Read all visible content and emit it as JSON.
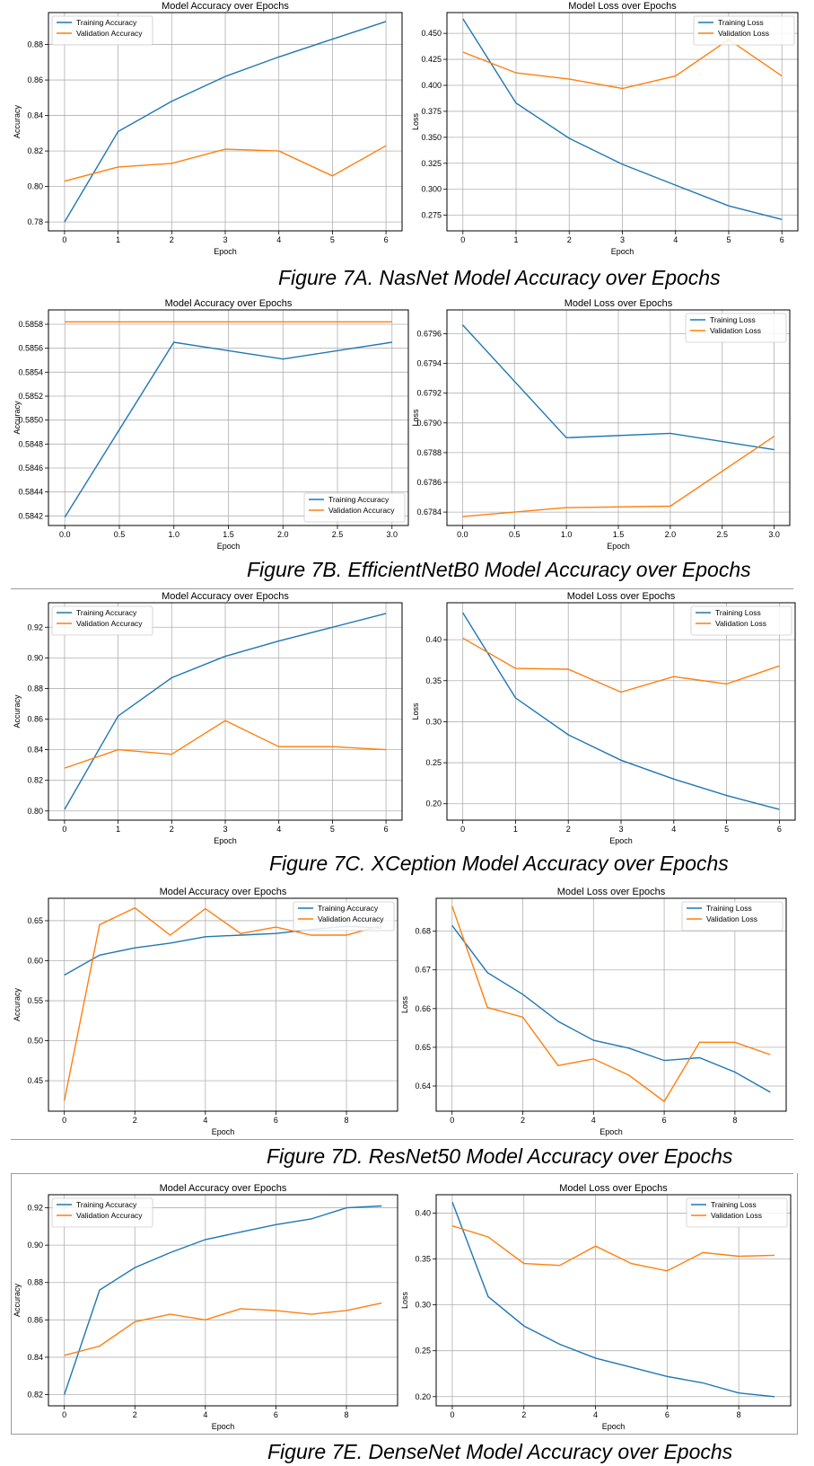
{
  "chart_data": [
    {
      "type": "line",
      "title": "Model Accuracy over Epochs",
      "xlabel": "Epoch",
      "ylabel": "Accuracy",
      "xlim": [
        -0.3,
        6.3
      ],
      "ylim": [
        0.775,
        0.898
      ],
      "xticks": [
        0,
        1,
        2,
        3,
        4,
        5,
        6
      ],
      "xtick_labels": [
        "0",
        "1",
        "2",
        "3",
        "4",
        "5",
        "6"
      ],
      "yticks": [
        0.78,
        0.8,
        0.82,
        0.84,
        0.86,
        0.88
      ],
      "ytick_labels": [
        "0.78",
        "0.80",
        "0.82",
        "0.84",
        "0.86",
        "0.88"
      ],
      "grid": true,
      "legend_position": "top-left",
      "series": [
        {
          "name": "Training Accuracy",
          "color": "#1f77b4",
          "x": [
            0,
            1,
            2,
            3,
            4,
            5,
            6
          ],
          "values": [
            0.78,
            0.831,
            0.848,
            0.862,
            0.873,
            0.883,
            0.893
          ]
        },
        {
          "name": "Validation Accuracy",
          "color": "#ff7f0e",
          "x": [
            0,
            1,
            2,
            3,
            4,
            5,
            6
          ],
          "values": [
            0.803,
            0.811,
            0.813,
            0.821,
            0.82,
            0.806,
            0.823
          ]
        }
      ]
    },
    {
      "type": "line",
      "title": "Model Loss over Epochs",
      "xlabel": "Epoch",
      "ylabel": "Loss",
      "xlim": [
        -0.3,
        6.3
      ],
      "ylim": [
        0.26,
        0.47
      ],
      "xticks": [
        0,
        1,
        2,
        3,
        4,
        5,
        6
      ],
      "xtick_labels": [
        "0",
        "1",
        "2",
        "3",
        "4",
        "5",
        "6"
      ],
      "yticks": [
        0.275,
        0.3,
        0.325,
        0.35,
        0.375,
        0.4,
        0.425,
        0.45
      ],
      "ytick_labels": [
        "0.275",
        "0.300",
        "0.325",
        "0.350",
        "0.375",
        "0.400",
        "0.425",
        "0.450"
      ],
      "grid": true,
      "legend_position": "top-right",
      "series": [
        {
          "name": "Training Loss",
          "color": "#1f77b4",
          "x": [
            0,
            1,
            2,
            3,
            4,
            5,
            6
          ],
          "values": [
            0.464,
            0.383,
            0.349,
            0.324,
            0.304,
            0.284,
            0.271
          ]
        },
        {
          "name": "Validation Loss",
          "color": "#ff7f0e",
          "x": [
            0,
            1,
            2,
            3,
            4,
            5,
            6
          ],
          "values": [
            0.432,
            0.412,
            0.406,
            0.397,
            0.409,
            0.444,
            0.409
          ]
        }
      ]
    },
    {
      "type": "line",
      "title": "Model Accuracy over Epochs",
      "xlabel": "Epoch",
      "ylabel": "Accuracy",
      "xlim": [
        -0.15,
        3.15
      ],
      "ylim": [
        0.58412,
        0.58592
      ],
      "xticks": [
        0,
        0.5,
        1,
        1.5,
        2,
        2.5,
        3
      ],
      "xtick_labels": [
        "0.0",
        "0.5",
        "1.0",
        "1.5",
        "2.0",
        "2.5",
        "3.0"
      ],
      "yticks": [
        0.5842,
        0.5844,
        0.5846,
        0.5848,
        0.585,
        0.5852,
        0.5854,
        0.5856,
        0.5858
      ],
      "ytick_labels": [
        "0.5842",
        "0.5844",
        "0.5846",
        "0.5848",
        "0.5850",
        "0.5852",
        "0.5854",
        "0.5856",
        "0.5858"
      ],
      "grid": true,
      "legend_position": "bottom-right",
      "series": [
        {
          "name": "Training Accuracy",
          "color": "#1f77b4",
          "x": [
            0,
            1,
            2,
            3
          ],
          "values": [
            0.58419,
            0.58565,
            0.58551,
            0.58565
          ]
        },
        {
          "name": "Validation Accuracy",
          "color": "#ff7f0e",
          "x": [
            0,
            1,
            2,
            3
          ],
          "values": [
            0.58582,
            0.58582,
            0.58582,
            0.58582
          ]
        }
      ]
    },
    {
      "type": "line",
      "title": "Model Loss over Epochs",
      "xlabel": "Epoch",
      "ylabel": "Loss",
      "xlim": [
        -0.15,
        3.15
      ],
      "ylim": [
        0.67831,
        0.67976
      ],
      "xticks": [
        0,
        0.5,
        1,
        1.5,
        2,
        2.5,
        3
      ],
      "xtick_labels": [
        "0.0",
        "0.5",
        "1.0",
        "1.5",
        "2.0",
        "2.5",
        "3.0"
      ],
      "yticks": [
        0.6784,
        0.6786,
        0.6788,
        0.679,
        0.6792,
        0.6794,
        0.6796
      ],
      "ytick_labels": [
        "0.6784",
        "0.6786",
        "0.6788",
        "0.6790",
        "0.6792",
        "0.6794",
        "0.6796"
      ],
      "grid": true,
      "legend_position": "top-right",
      "series": [
        {
          "name": "Training Loss",
          "color": "#1f77b4",
          "x": [
            0,
            1,
            2,
            3
          ],
          "values": [
            0.67966,
            0.6789,
            0.67893,
            0.67882
          ]
        },
        {
          "name": "Validation Loss",
          "color": "#ff7f0e",
          "x": [
            0,
            1,
            2,
            3
          ],
          "values": [
            0.67837,
            0.67843,
            0.67844,
            0.67891
          ]
        }
      ]
    },
    {
      "type": "line",
      "title": "Model Accuracy over Epochs",
      "xlabel": "Epoch",
      "ylabel": "Accuracy",
      "xlim": [
        -0.3,
        6.3
      ],
      "ylim": [
        0.794,
        0.936
      ],
      "xticks": [
        0,
        1,
        2,
        3,
        4,
        5,
        6
      ],
      "xtick_labels": [
        "0",
        "1",
        "2",
        "3",
        "4",
        "5",
        "6"
      ],
      "yticks": [
        0.8,
        0.82,
        0.84,
        0.86,
        0.88,
        0.9,
        0.92
      ],
      "ytick_labels": [
        "0.80",
        "0.82",
        "0.84",
        "0.86",
        "0.88",
        "0.90",
        "0.92"
      ],
      "grid": true,
      "legend_position": "top-left",
      "series": [
        {
          "name": "Training Accuracy",
          "color": "#1f77b4",
          "x": [
            0,
            1,
            2,
            3,
            4,
            5,
            6
          ],
          "values": [
            0.801,
            0.862,
            0.887,
            0.901,
            0.911,
            0.92,
            0.929
          ]
        },
        {
          "name": "Validation Accuracy",
          "color": "#ff7f0e",
          "x": [
            0,
            1,
            2,
            3,
            4,
            5,
            6
          ],
          "values": [
            0.828,
            0.84,
            0.837,
            0.859,
            0.842,
            0.842,
            0.84
          ]
        }
      ]
    },
    {
      "type": "line",
      "title": "Model Loss over Epochs",
      "xlabel": "Epoch",
      "ylabel": "Loss",
      "xlim": [
        -0.3,
        6.3
      ],
      "ylim": [
        0.18,
        0.445
      ],
      "xticks": [
        0,
        1,
        2,
        3,
        4,
        5,
        6
      ],
      "xtick_labels": [
        "0",
        "1",
        "2",
        "3",
        "4",
        "5",
        "6"
      ],
      "yticks": [
        0.2,
        0.25,
        0.3,
        0.35,
        0.4
      ],
      "ytick_labels": [
        "0.20",
        "0.25",
        "0.30",
        "0.35",
        "0.40"
      ],
      "grid": true,
      "legend_position": "top-right",
      "series": [
        {
          "name": "Training Loss",
          "color": "#1f77b4",
          "x": [
            0,
            1,
            2,
            3,
            4,
            5,
            6
          ],
          "values": [
            0.433,
            0.329,
            0.284,
            0.253,
            0.23,
            0.21,
            0.193
          ]
        },
        {
          "name": "Validation Loss",
          "color": "#ff7f0e",
          "x": [
            0,
            1,
            2,
            3,
            4,
            5,
            6
          ],
          "values": [
            0.402,
            0.365,
            0.364,
            0.336,
            0.355,
            0.346,
            0.368
          ]
        }
      ]
    },
    {
      "type": "line",
      "title": "Model Accuracy over Epochs",
      "xlabel": "Epoch",
      "ylabel": "Accuracy",
      "xlim": [
        -0.45,
        9.45
      ],
      "ylim": [
        0.412,
        0.678
      ],
      "xticks": [
        0,
        2,
        4,
        6,
        8
      ],
      "xtick_labels": [
        "0",
        "2",
        "4",
        "6",
        "8"
      ],
      "yticks": [
        0.45,
        0.5,
        0.55,
        0.6,
        0.65
      ],
      "ytick_labels": [
        "0.45",
        "0.50",
        "0.55",
        "0.60",
        "0.65"
      ],
      "grid": true,
      "legend_position": "top-right",
      "series": [
        {
          "name": "Training Accuracy",
          "color": "#1f77b4",
          "x": [
            0,
            1,
            2,
            3,
            4,
            5,
            6,
            7,
            8,
            9
          ],
          "values": [
            0.582,
            0.607,
            0.616,
            0.622,
            0.63,
            0.632,
            0.634,
            0.639,
            0.643,
            0.641
          ]
        },
        {
          "name": "Validation Accuracy",
          "color": "#ff7f0e",
          "x": [
            0,
            1,
            2,
            3,
            4,
            5,
            6,
            7,
            8,
            9
          ],
          "values": [
            0.425,
            0.645,
            0.666,
            0.632,
            0.665,
            0.634,
            0.642,
            0.632,
            0.632,
            0.644
          ]
        }
      ]
    },
    {
      "type": "line",
      "title": "Model Loss over Epochs",
      "xlabel": "Epoch",
      "ylabel": "Loss",
      "xlim": [
        -0.45,
        9.45
      ],
      "ylim": [
        0.6335,
        0.6885
      ],
      "xticks": [
        0,
        2,
        4,
        6,
        8
      ],
      "xtick_labels": [
        "0",
        "2",
        "4",
        "6",
        "8"
      ],
      "yticks": [
        0.64,
        0.65,
        0.66,
        0.67,
        0.68
      ],
      "ytick_labels": [
        "0.64",
        "0.65",
        "0.66",
        "0.67",
        "0.68"
      ],
      "grid": true,
      "legend_position": "top-right",
      "series": [
        {
          "name": "Training Loss",
          "color": "#1f77b4",
          "x": [
            0,
            1,
            2,
            3,
            4,
            5,
            6,
            7,
            8,
            9
          ],
          "values": [
            0.6815,
            0.6693,
            0.6637,
            0.6567,
            0.6518,
            0.6498,
            0.6466,
            0.6473,
            0.6436,
            0.6384
          ]
        },
        {
          "name": "Validation Loss",
          "color": "#ff7f0e",
          "x": [
            0,
            1,
            2,
            3,
            4,
            5,
            6,
            7,
            8,
            9
          ],
          "values": [
            0.6865,
            0.6603,
            0.6578,
            0.6453,
            0.647,
            0.6428,
            0.636,
            0.6513,
            0.6513,
            0.6481
          ]
        }
      ]
    },
    {
      "type": "line",
      "title": "Model Accuracy over Epochs",
      "xlabel": "Epoch",
      "ylabel": "Accuracy",
      "xlim": [
        -0.45,
        9.45
      ],
      "ylim": [
        0.814,
        0.927
      ],
      "xticks": [
        0,
        2,
        4,
        6,
        8
      ],
      "xtick_labels": [
        "0",
        "2",
        "4",
        "6",
        "8"
      ],
      "yticks": [
        0.82,
        0.84,
        0.86,
        0.88,
        0.9,
        0.92
      ],
      "ytick_labels": [
        "0.82",
        "0.84",
        "0.86",
        "0.88",
        "0.90",
        "0.92"
      ],
      "grid": true,
      "legend_position": "top-left",
      "series": [
        {
          "name": "Training Accuracy",
          "color": "#1f77b4",
          "x": [
            0,
            1,
            2,
            3,
            4,
            5,
            6,
            7,
            8,
            9
          ],
          "values": [
            0.82,
            0.876,
            0.888,
            0.896,
            0.903,
            0.907,
            0.911,
            0.914,
            0.92,
            0.921
          ]
        },
        {
          "name": "Validation Accuracy",
          "color": "#ff7f0e",
          "x": [
            0,
            1,
            2,
            3,
            4,
            5,
            6,
            7,
            8,
            9
          ],
          "values": [
            0.841,
            0.846,
            0.859,
            0.863,
            0.86,
            0.866,
            0.865,
            0.863,
            0.865,
            0.869
          ]
        }
      ]
    },
    {
      "type": "line",
      "title": "Model Loss over Epochs",
      "xlabel": "Epoch",
      "ylabel": "Loss",
      "xlim": [
        -0.45,
        9.45
      ],
      "ylim": [
        0.19,
        0.42
      ],
      "xticks": [
        0,
        2,
        4,
        6,
        8
      ],
      "xtick_labels": [
        "0",
        "2",
        "4",
        "6",
        "8"
      ],
      "yticks": [
        0.2,
        0.25,
        0.3,
        0.35,
        0.4
      ],
      "ytick_labels": [
        "0.20",
        "0.25",
        "0.30",
        "0.35",
        "0.40"
      ],
      "grid": true,
      "legend_position": "top-right",
      "series": [
        {
          "name": "Training Loss",
          "color": "#1f77b4",
          "x": [
            0,
            1,
            2,
            3,
            4,
            5,
            6,
            7,
            8,
            9
          ],
          "values": [
            0.412,
            0.309,
            0.277,
            0.257,
            0.242,
            0.232,
            0.222,
            0.215,
            0.204,
            0.2
          ]
        },
        {
          "name": "Validation Loss",
          "color": "#ff7f0e",
          "x": [
            0,
            1,
            2,
            3,
            4,
            5,
            6,
            7,
            8,
            9
          ],
          "values": [
            0.386,
            0.374,
            0.345,
            0.343,
            0.364,
            0.345,
            0.337,
            0.357,
            0.353,
            0.354
          ]
        }
      ]
    }
  ],
  "captions": {
    "fig7a": "Figure 7A. NasNet Model Accuracy over Epochs",
    "fig7b": "Figure 7B. EfficientNetB0 Model Accuracy over Epochs",
    "fig7c": "Figure 7C. XCeption Model Accuracy over Epochs",
    "fig7d": "Figure 7D. ResNet50 Model Accuracy over Epochs",
    "fig7e": "Figure 7E. DenseNet Model Accuracy over Epochs"
  }
}
